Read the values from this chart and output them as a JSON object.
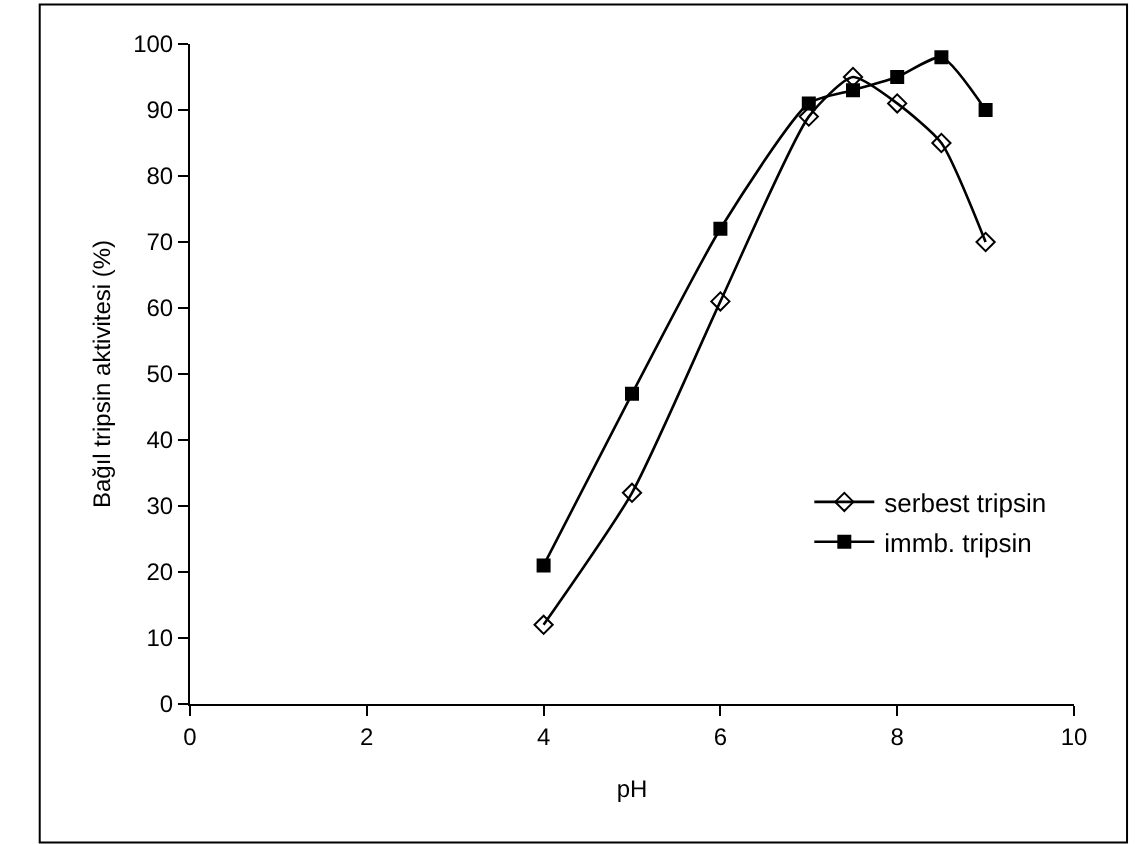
{
  "chart_data": {
    "type": "line",
    "xlabel": "pH",
    "ylabel": "Bağıl tripsin aktivitesi (%)",
    "xlim": [
      0,
      10
    ],
    "xticks": [
      0,
      2,
      4,
      6,
      8,
      10
    ],
    "ylim": [
      0,
      100
    ],
    "yticks": [
      0,
      10,
      20,
      30,
      40,
      50,
      60,
      70,
      80,
      90,
      100
    ],
    "legend": "right",
    "line_style": "solid",
    "series": [
      {
        "name": "serbest tripsin",
        "color": "#000000",
        "marker": "diamond-open",
        "x": [
          4,
          5,
          6,
          7,
          7.5,
          8,
          8.5,
          9
        ],
        "values": [
          12,
          32,
          61,
          89,
          95,
          91,
          85,
          70
        ]
      },
      {
        "name": "immb. tripsin",
        "color": "#000000",
        "marker": "square",
        "x": [
          4,
          5,
          6,
          7,
          7.5,
          8,
          8.5,
          9
        ],
        "values": [
          21,
          47,
          72,
          91,
          93,
          95,
          98,
          90
        ]
      }
    ]
  }
}
